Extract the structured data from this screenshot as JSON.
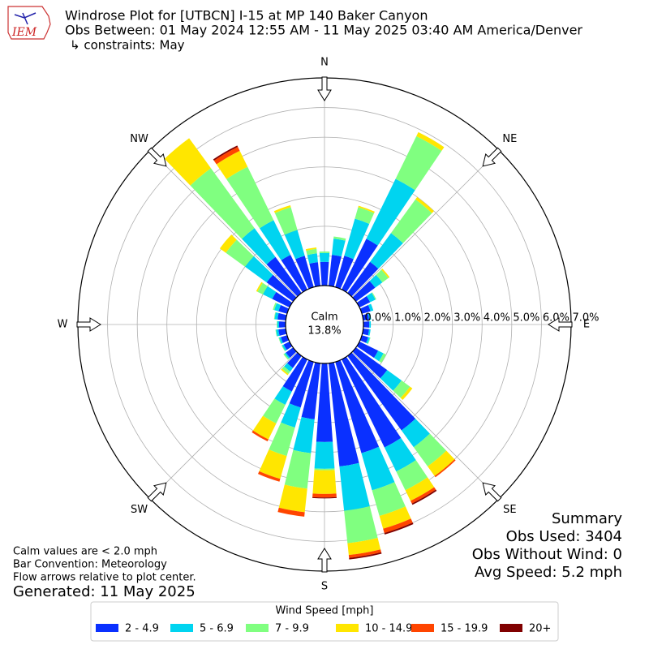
{
  "logo_text": "IEM",
  "chart_data": {
    "type": "windrose",
    "title": "Windrose Plot for [UTBCN] I-15 at MP 140 Baker Canyon",
    "subtitle": "Obs Between: 01 May 2024 12:55 AM - 11 May 2025 03:40 AM America/Denver",
    "constraints": "↳ constraints: May",
    "x": [
      0,
      10,
      20,
      30,
      40,
      50,
      60,
      70,
      80,
      90,
      100,
      110,
      120,
      130,
      140,
      150,
      160,
      170,
      180,
      190,
      200,
      210,
      220,
      230,
      240,
      250,
      260,
      270,
      280,
      290,
      300,
      310,
      320,
      330,
      340,
      350
    ],
    "xticks": [
      {
        "value": 0,
        "label": "N"
      },
      {
        "value": 45,
        "label": "NE"
      },
      {
        "value": 90,
        "label": "E"
      },
      {
        "value": 135,
        "label": "SE"
      },
      {
        "value": 180,
        "label": "S"
      },
      {
        "value": 225,
        "label": "SW"
      },
      {
        "value": 270,
        "label": "W"
      },
      {
        "value": 315,
        "label": "NW"
      }
    ],
    "ylim": [
      0,
      7
    ],
    "yticks": [
      {
        "value": 0,
        "label": "0.0%"
      },
      {
        "value": 1,
        "label": "1.0%"
      },
      {
        "value": 2,
        "label": "2.0%"
      },
      {
        "value": 3,
        "label": "3.0%"
      },
      {
        "value": 4,
        "label": "4.0%"
      },
      {
        "value": 5,
        "label": "5.0%"
      },
      {
        "value": 6,
        "label": "6.0%"
      },
      {
        "value": 7,
        "label": "7.0%"
      }
    ],
    "grid": true,
    "calm": {
      "label": "Calm",
      "value": 13.8,
      "value_label": "13.8%"
    },
    "legend_title": "Wind Speed [mph]",
    "legend_position": "bottom",
    "series": [
      {
        "name": "2 - 4.9",
        "color": "#0a30ff",
        "values": [
          0.8,
          1.05,
          1.1,
          1.9,
          1.3,
          0.8,
          0.4,
          0.3,
          0.2,
          0.2,
          0.2,
          0.22,
          0.7,
          1.3,
          3.1,
          3.3,
          3.2,
          3.5,
          2.65,
          1.9,
          1.6,
          1.2,
          0.5,
          0.3,
          0.22,
          0.22,
          0.25,
          0.22,
          0.28,
          0.3,
          0.65,
          1.1,
          1.5,
          1.3,
          1.1,
          0.8
        ]
      },
      {
        "name": "5 - 6.9",
        "color": "#00d4f0",
        "values": [
          0.3,
          0.55,
          1.3,
          2.25,
          1.2,
          0.3,
          0.2,
          0.1,
          0.07,
          0.05,
          0.05,
          0.06,
          0.2,
          0.6,
          0.7,
          0.9,
          1.3,
          1.5,
          0.9,
          1.15,
          0.7,
          0.5,
          0.15,
          0.05,
          0.06,
          0.06,
          0.08,
          0.06,
          0.1,
          0.15,
          0.35,
          0.9,
          1.2,
          1.3,
          0.9,
          0.3
        ]
      },
      {
        "name": "7 - 9.9",
        "color": "#80ff80",
        "values": [
          0.05,
          0.07,
          0.4,
          1.6,
          1.4,
          0.25,
          0.03,
          0,
          0,
          0,
          0,
          0.02,
          0.1,
          0.35,
          0.8,
          0.7,
          0.9,
          1.1,
          0.05,
          1.2,
          1.0,
          0.7,
          0.1,
          0.05,
          0.02,
          0.02,
          0.02,
          0.02,
          0.02,
          0.05,
          0.2,
          0.8,
          2.5,
          2.0,
          0.8,
          0.15
        ]
      },
      {
        "name": "10 - 14.9",
        "color": "#ffe600",
        "values": [
          0,
          0,
          0.05,
          0.15,
          0.1,
          0.05,
          0,
          0,
          0,
          0,
          0,
          0,
          0,
          0.1,
          0.4,
          0.4,
          0.45,
          0.4,
          0.8,
          0.8,
          0.8,
          0.6,
          0.05,
          0,
          0,
          0,
          0,
          0,
          0,
          0,
          0.05,
          0.25,
          1.25,
          0.6,
          0.07,
          0.05
        ]
      },
      {
        "name": "15 - 19.9",
        "color": "#ff4500",
        "values": [
          0,
          0,
          0,
          0,
          0,
          0,
          0,
          0,
          0,
          0,
          0,
          0,
          0,
          0,
          0.05,
          0.1,
          0.15,
          0.1,
          0.12,
          0.15,
          0.1,
          0.07,
          0,
          0,
          0,
          0,
          0,
          0,
          0,
          0,
          0,
          0,
          0,
          0.15,
          0,
          0
        ]
      },
      {
        "name": "20+",
        "color": "#800000",
        "values": [
          0,
          0,
          0,
          0,
          0,
          0,
          0,
          0,
          0,
          0,
          0,
          0,
          0,
          0,
          0,
          0.05,
          0.05,
          0.05,
          0.03,
          0,
          0,
          0,
          0,
          0,
          0,
          0,
          0,
          0,
          0,
          0,
          0,
          0,
          0,
          0.05,
          0,
          0
        ]
      }
    ],
    "notes": [
      "Calm values are < 2.0 mph",
      "Bar Convention: Meteorology",
      "Flow arrows relative to plot center."
    ],
    "generated": "Generated: 11 May 2025",
    "summary": [
      "Summary",
      "Obs Used: 3404",
      "Obs Without Wind: 0",
      "Avg Speed: 5.2 mph"
    ]
  }
}
